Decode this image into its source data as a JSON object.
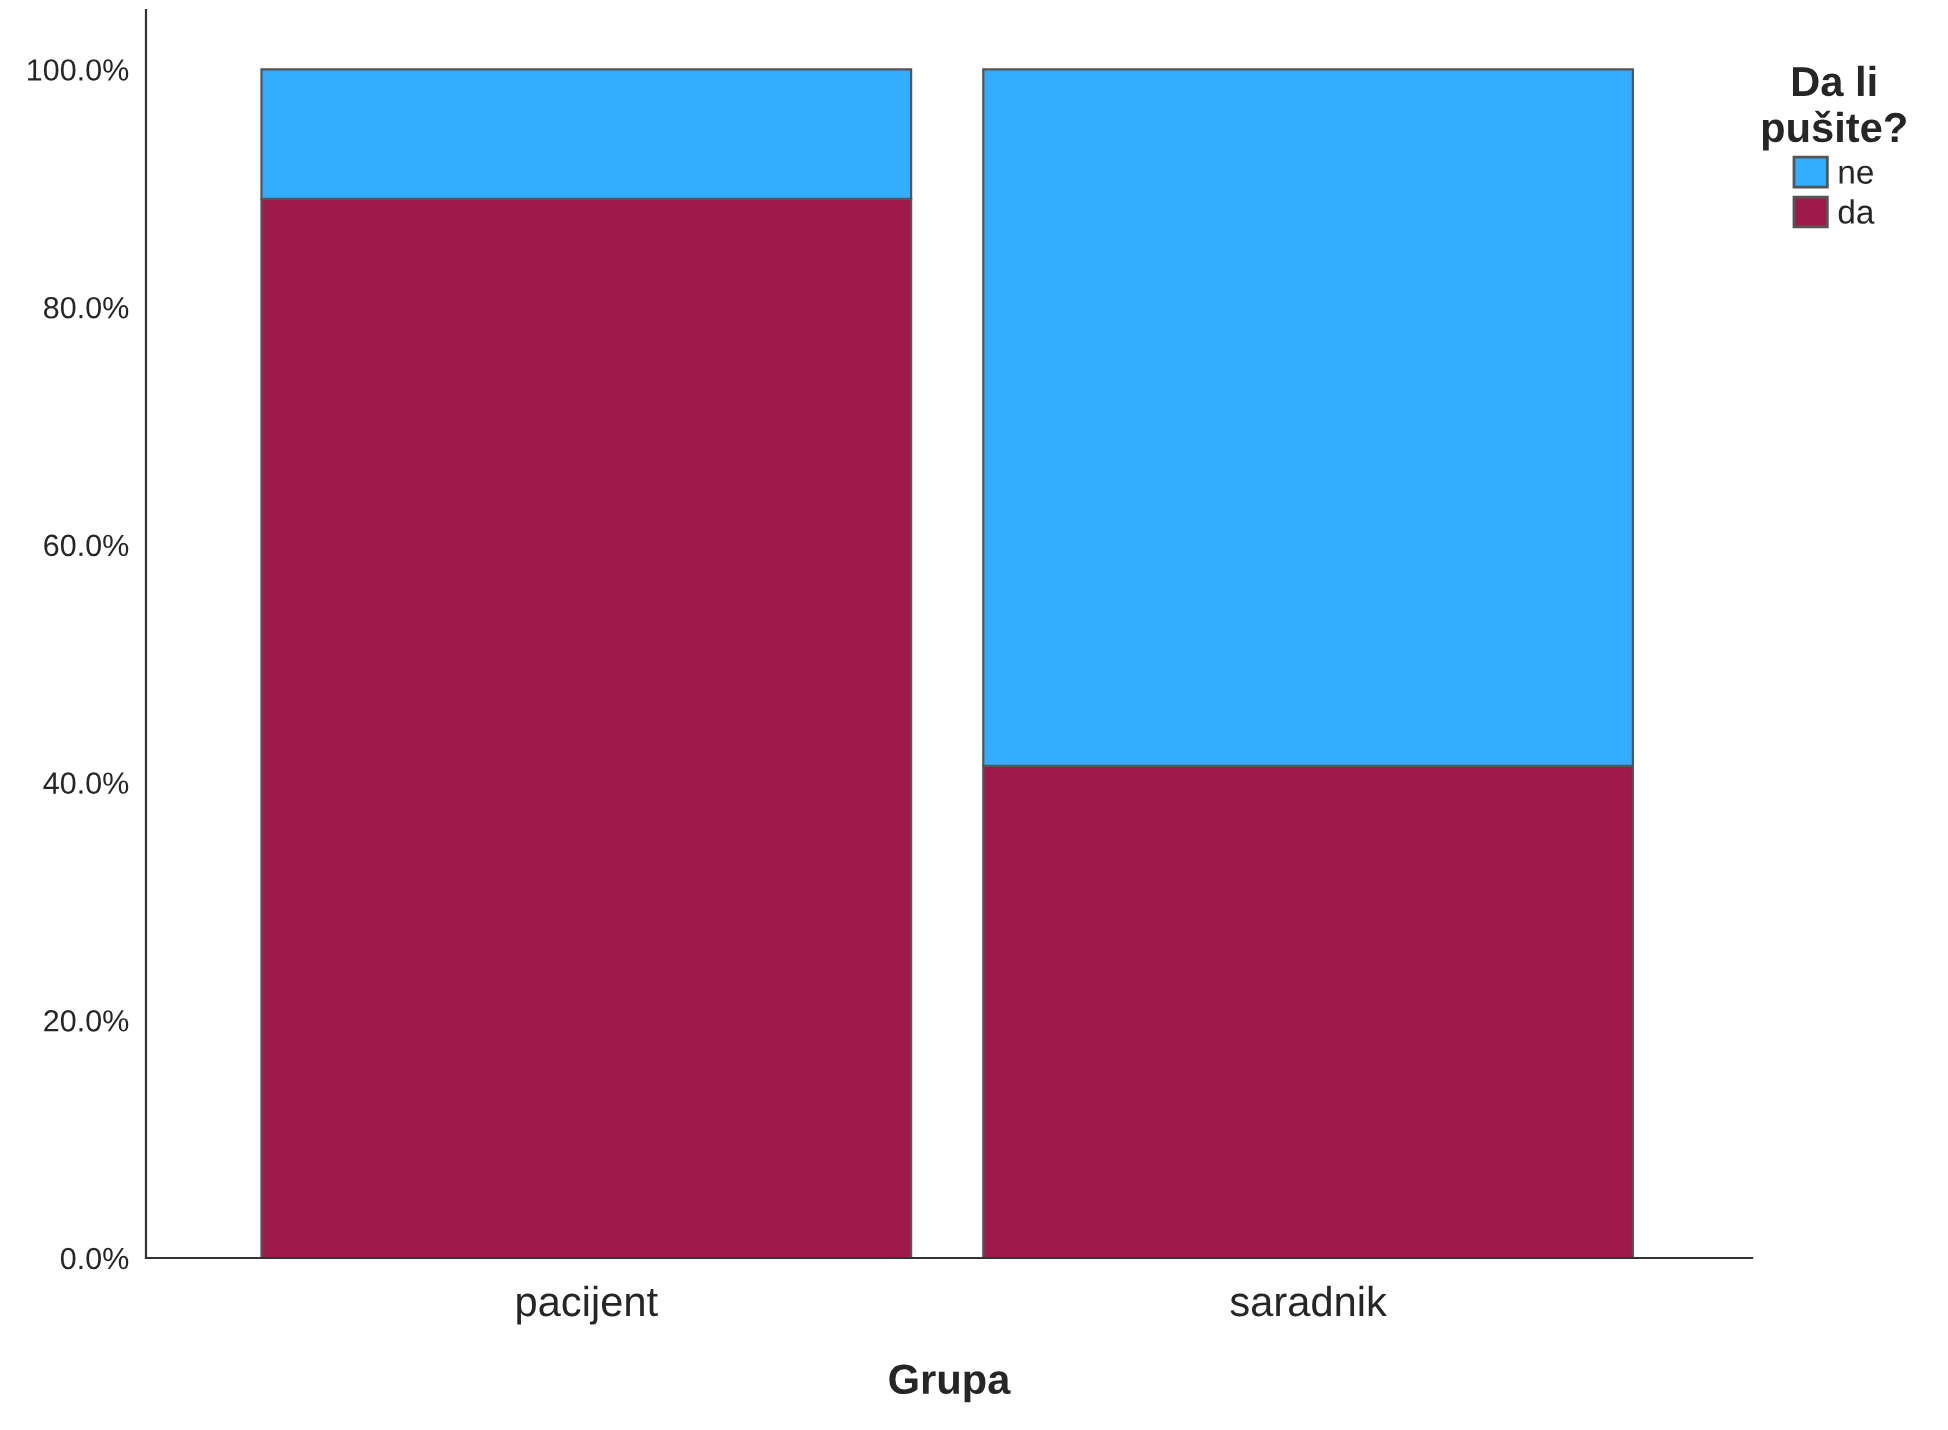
{
  "chart_data": {
    "type": "bar",
    "stacked": true,
    "xlabel": "Grupa",
    "legend_title": "Da li\npušite?",
    "categories": [
      "pacijent",
      "saradnik"
    ],
    "series": [
      {
        "name": "da",
        "color": "#a0194b",
        "values": [
          89.1,
          41.4
        ]
      },
      {
        "name": "ne",
        "color": "#33adff",
        "values": [
          10.9,
          58.6
        ]
      }
    ],
    "ylim": [
      0,
      105
    ],
    "yticks": [
      {
        "value": 0,
        "label": "0.0%"
      },
      {
        "value": 20,
        "label": "20.0%"
      },
      {
        "value": 40,
        "label": "40.0%"
      },
      {
        "value": 60,
        "label": "60.0%"
      },
      {
        "value": 80,
        "label": "80.0%"
      },
      {
        "value": 100,
        "label": "100.0%"
      }
    ],
    "grid": false,
    "legend": "top right"
  }
}
